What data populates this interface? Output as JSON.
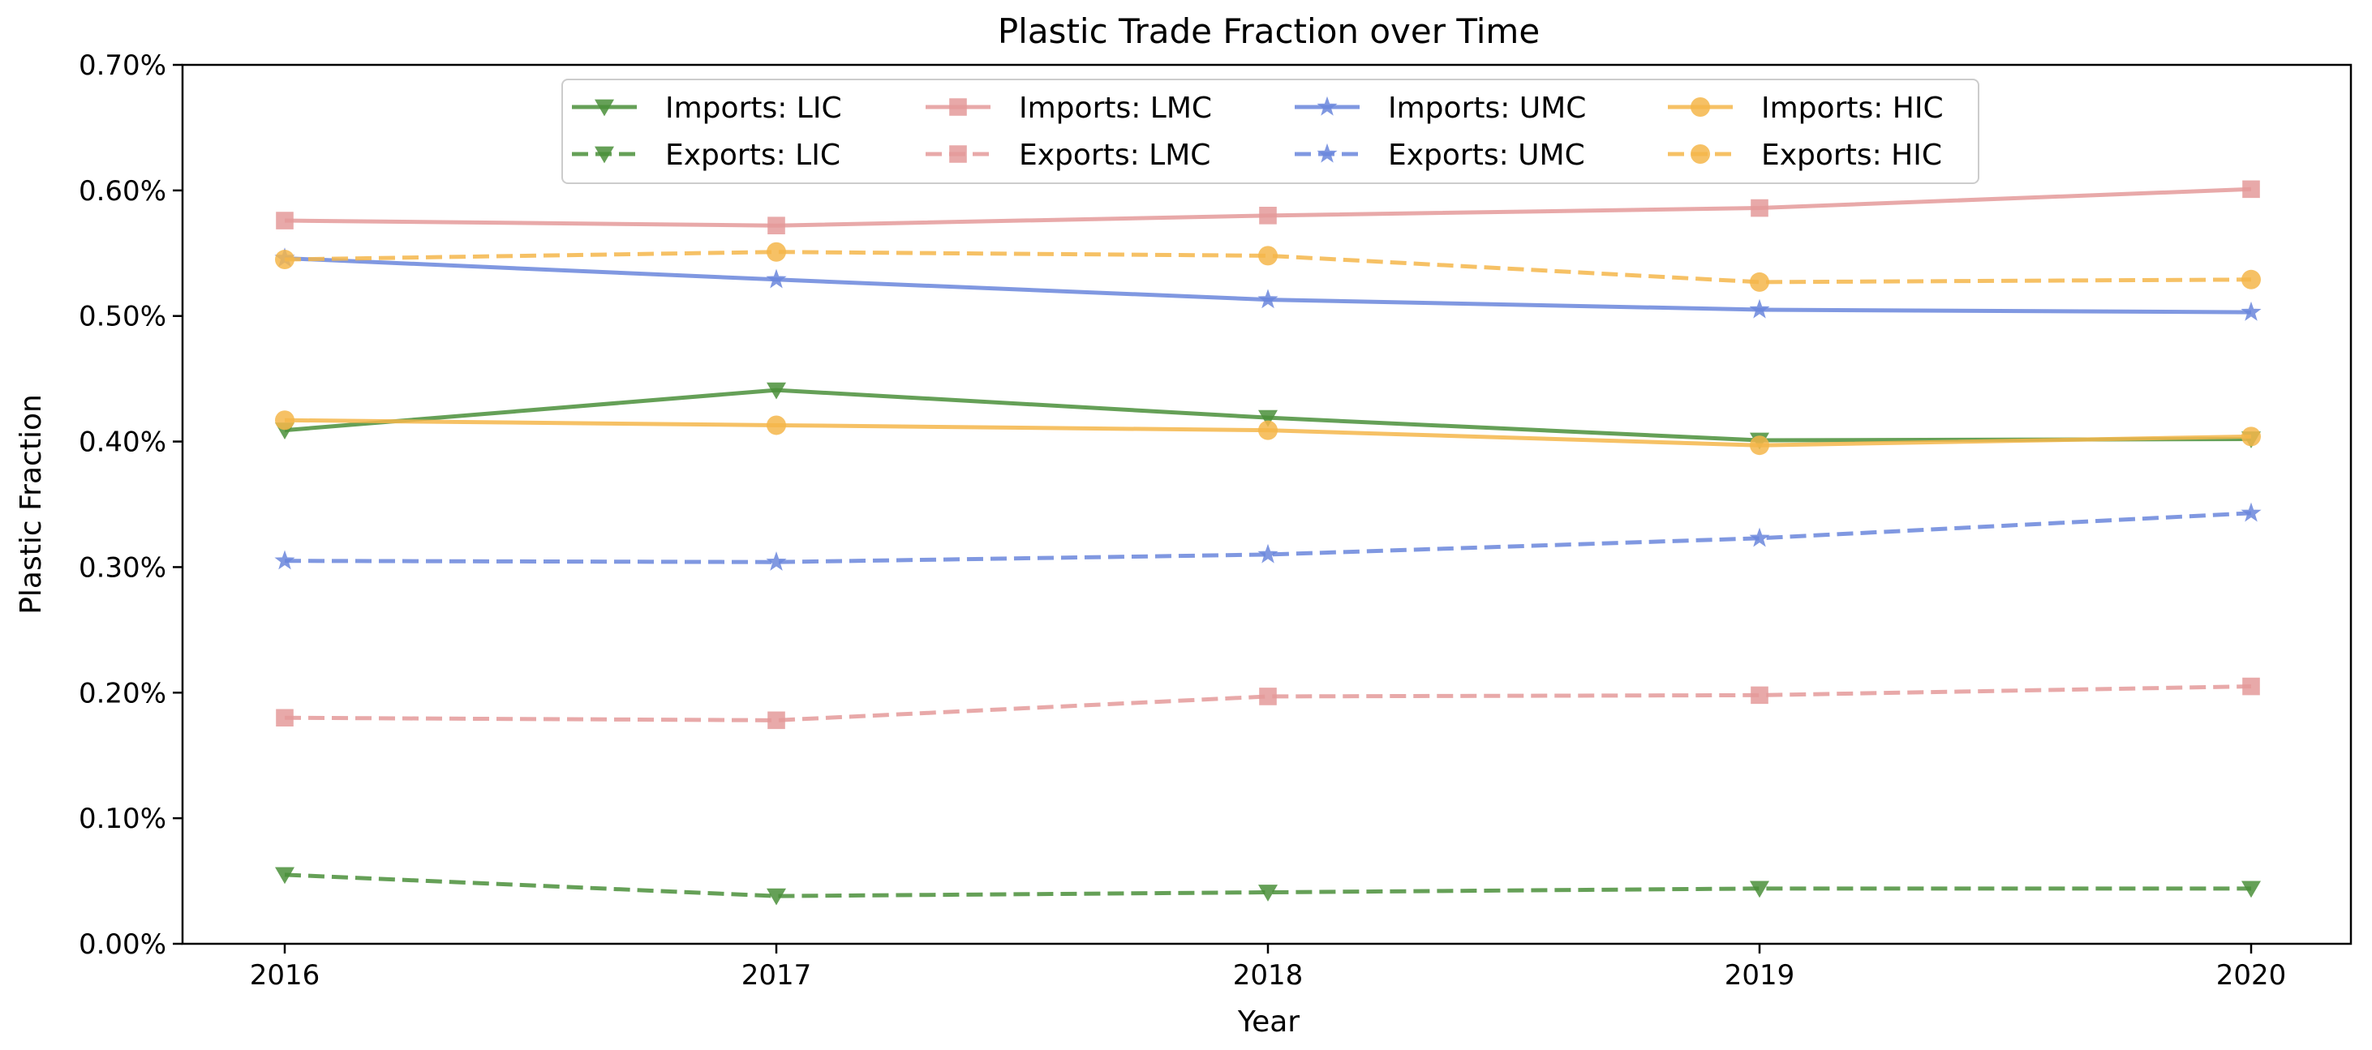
{
  "chart_data": {
    "type": "line",
    "title": "Plastic Trade Fraction over Time",
    "xlabel": "Year",
    "ylabel": "Plastic Fraction",
    "x": [
      2016,
      2017,
      2018,
      2019,
      2020
    ],
    "x_tick_labels": [
      "2016",
      "2017",
      "2018",
      "2019",
      "2020"
    ],
    "ylim": [
      0,
      0.7
    ],
    "y_ticks": [
      0,
      0.1,
      0.2,
      0.3,
      0.4,
      0.5,
      0.6,
      0.7
    ],
    "y_tick_labels": [
      "0.00%",
      "0.10%",
      "0.20%",
      "0.30%",
      "0.40%",
      "0.50%",
      "0.60%",
      "0.70%"
    ],
    "y_unit": "percent",
    "grid": false,
    "legend_position": "top-center",
    "legend_columns": 4,
    "series": [
      {
        "name": "Imports: LIC",
        "key": "imports-lic",
        "group": "LIC",
        "flow": "imports",
        "color": "#4a8f3a",
        "linestyle": "solid",
        "marker": "triangle-down",
        "values": [
          0.409,
          0.441,
          0.419,
          0.401,
          0.402
        ]
      },
      {
        "name": "Exports: LIC",
        "key": "exports-lic",
        "group": "LIC",
        "flow": "exports",
        "color": "#4a8f3a",
        "linestyle": "dashed",
        "marker": "triangle-down",
        "values": [
          0.055,
          0.038,
          0.041,
          0.044,
          0.044
        ]
      },
      {
        "name": "Imports: LMC",
        "key": "imports-lmc",
        "group": "LMC",
        "flow": "imports",
        "color": "#e49a9a",
        "linestyle": "solid",
        "marker": "square",
        "values": [
          0.576,
          0.572,
          0.58,
          0.586,
          0.601
        ]
      },
      {
        "name": "Exports: LMC",
        "key": "exports-lmc",
        "group": "LMC",
        "flow": "exports",
        "color": "#e49a9a",
        "linestyle": "dashed",
        "marker": "square",
        "values": [
          0.18,
          0.178,
          0.197,
          0.198,
          0.205
        ]
      },
      {
        "name": "Imports: UMC",
        "key": "imports-umc",
        "group": "UMC",
        "flow": "imports",
        "color": "#6a86dc",
        "linestyle": "solid",
        "marker": "star",
        "values": [
          0.546,
          0.529,
          0.513,
          0.505,
          0.503
        ]
      },
      {
        "name": "Exports: UMC",
        "key": "exports-umc",
        "group": "UMC",
        "flow": "exports",
        "color": "#6a86dc",
        "linestyle": "dashed",
        "marker": "star",
        "values": [
          0.305,
          0.304,
          0.31,
          0.323,
          0.343
        ]
      },
      {
        "name": "Imports: HIC",
        "key": "imports-hic",
        "group": "HIC",
        "flow": "imports",
        "color": "#f5b64a",
        "linestyle": "solid",
        "marker": "circle",
        "values": [
          0.417,
          0.413,
          0.409,
          0.397,
          0.404
        ]
      },
      {
        "name": "Exports: HIC",
        "key": "exports-hic",
        "group": "HIC",
        "flow": "exports",
        "color": "#f5b64a",
        "linestyle": "dashed",
        "marker": "circle",
        "values": [
          0.545,
          0.551,
          0.548,
          0.527,
          0.529
        ]
      }
    ]
  }
}
